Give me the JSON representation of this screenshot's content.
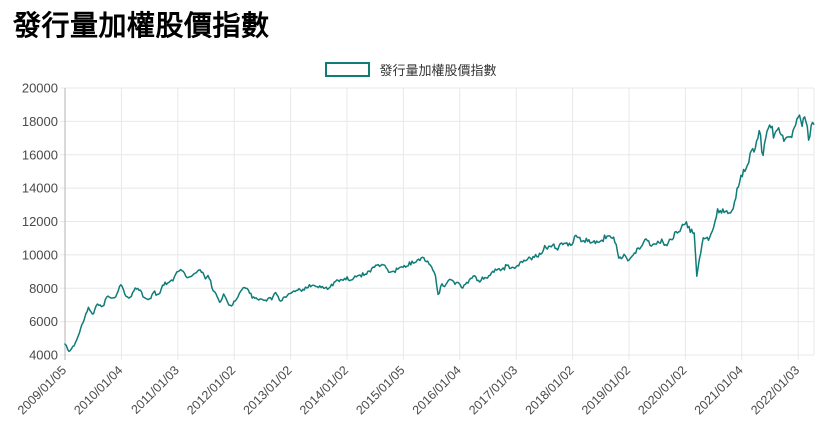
{
  "page": {
    "title": "發行量加權股價指數",
    "background": "#ffffff"
  },
  "legend": {
    "label": "發行量加權股價指數",
    "swatch_border_color": "#0f7c78",
    "swatch_fill": "#ffffff"
  },
  "chart_data": {
    "type": "line",
    "title": "發行量加權股價指數",
    "xlabel": "",
    "ylabel": "",
    "xlim": [
      2009.01,
      2022.29
    ],
    "ylim": [
      4000,
      20000
    ],
    "grid": true,
    "legend_position": "top-center",
    "colors": {
      "line": "#0f7c78",
      "grid": "#e8e8e8",
      "axis": "#b5b5b5",
      "tick_label": "#4a4a4a",
      "title": "#000000"
    },
    "y_ticks": [
      4000,
      6000,
      8000,
      10000,
      12000,
      14000,
      16000,
      18000,
      20000
    ],
    "x_ticks": [
      {
        "label": "2009/01/05",
        "x": 2009.01
      },
      {
        "label": "2010/01/04",
        "x": 2010.01
      },
      {
        "label": "2011/01/03",
        "x": 2011.01
      },
      {
        "label": "2012/01/02",
        "x": 2012.01
      },
      {
        "label": "2013/01/02",
        "x": 2013.01
      },
      {
        "label": "2014/01/02",
        "x": 2014.01
      },
      {
        "label": "2015/01/05",
        "x": 2015.01
      },
      {
        "label": "2016/01/04",
        "x": 2016.01
      },
      {
        "label": "2017/01/03",
        "x": 2017.01
      },
      {
        "label": "2018/01/02",
        "x": 2018.01
      },
      {
        "label": "2019/01/02",
        "x": 2019.01
      },
      {
        "label": "2020/01/02",
        "x": 2020.01
      },
      {
        "label": "2021/01/04",
        "x": 2021.01
      },
      {
        "label": "2022/01/03",
        "x": 2022.01
      }
    ],
    "series": [
      {
        "name": "發行量加權股價指數",
        "points": [
          [
            2009.01,
            4700
          ],
          [
            2009.08,
            4248
          ],
          [
            2009.17,
            4557
          ],
          [
            2009.25,
            5210
          ],
          [
            2009.33,
            5992
          ],
          [
            2009.42,
            6890
          ],
          [
            2009.5,
            6432
          ],
          [
            2009.58,
            7077
          ],
          [
            2009.67,
            6826
          ],
          [
            2009.75,
            7509
          ],
          [
            2009.83,
            7340
          ],
          [
            2009.92,
            7583
          ],
          [
            2010.0,
            8188
          ],
          [
            2010.08,
            7640
          ],
          [
            2010.17,
            7436
          ],
          [
            2010.25,
            7920
          ],
          [
            2010.33,
            8004
          ],
          [
            2010.42,
            7374
          ],
          [
            2010.5,
            7329
          ],
          [
            2010.58,
            7760
          ],
          [
            2010.67,
            7616
          ],
          [
            2010.75,
            8237
          ],
          [
            2010.83,
            8287
          ],
          [
            2010.92,
            8372
          ],
          [
            2011.0,
            8973
          ],
          [
            2011.08,
            9145
          ],
          [
            2011.17,
            8599
          ],
          [
            2011.25,
            8683
          ],
          [
            2011.33,
            9008
          ],
          [
            2011.42,
            9069
          ],
          [
            2011.5,
            8653
          ],
          [
            2011.58,
            8644
          ],
          [
            2011.63,
            7880
          ],
          [
            2011.67,
            7741
          ],
          [
            2011.75,
            7225
          ],
          [
            2011.83,
            7588
          ],
          [
            2011.92,
            6904
          ],
          [
            2012.0,
            7072
          ],
          [
            2012.08,
            7517
          ],
          [
            2012.17,
            8121
          ],
          [
            2012.25,
            7933
          ],
          [
            2012.33,
            7501
          ],
          [
            2012.42,
            7301
          ],
          [
            2012.5,
            7296
          ],
          [
            2012.58,
            7270
          ],
          [
            2012.67,
            7397
          ],
          [
            2012.75,
            7715
          ],
          [
            2012.83,
            7166
          ],
          [
            2012.92,
            7580
          ],
          [
            2013.0,
            7699
          ],
          [
            2013.08,
            7850
          ],
          [
            2013.17,
            7898
          ],
          [
            2013.25,
            7919
          ],
          [
            2013.33,
            8093
          ],
          [
            2013.42,
            8254
          ],
          [
            2013.5,
            8062
          ],
          [
            2013.58,
            8108
          ],
          [
            2013.67,
            8021
          ],
          [
            2013.75,
            8173
          ],
          [
            2013.83,
            8450
          ],
          [
            2013.92,
            8406
          ],
          [
            2014.0,
            8612
          ],
          [
            2014.08,
            8462
          ],
          [
            2014.17,
            8639
          ],
          [
            2014.25,
            8849
          ],
          [
            2014.33,
            8791
          ],
          [
            2014.42,
            9075
          ],
          [
            2014.5,
            9393
          ],
          [
            2014.58,
            9315
          ],
          [
            2014.67,
            9436
          ],
          [
            2014.75,
            8967
          ],
          [
            2014.83,
            8974
          ],
          [
            2014.92,
            9187
          ],
          [
            2015.0,
            9307
          ],
          [
            2015.08,
            9361
          ],
          [
            2015.17,
            9622
          ],
          [
            2015.25,
            9586
          ],
          [
            2015.33,
            9820
          ],
          [
            2015.42,
            9701
          ],
          [
            2015.5,
            9323
          ],
          [
            2015.58,
            8665
          ],
          [
            2015.63,
            7490
          ],
          [
            2015.67,
            8174
          ],
          [
            2015.75,
            8181
          ],
          [
            2015.83,
            8554
          ],
          [
            2015.92,
            8320
          ],
          [
            2016.0,
            8338
          ],
          [
            2016.05,
            7850
          ],
          [
            2016.08,
            8145
          ],
          [
            2016.17,
            8411
          ],
          [
            2016.25,
            8744
          ],
          [
            2016.33,
            8377
          ],
          [
            2016.42,
            8535
          ],
          [
            2016.5,
            8666
          ],
          [
            2016.58,
            8984
          ],
          [
            2016.67,
            9068
          ],
          [
            2016.75,
            9166
          ],
          [
            2016.83,
            9290
          ],
          [
            2016.92,
            9240
          ],
          [
            2017.0,
            9253
          ],
          [
            2017.08,
            9447
          ],
          [
            2017.17,
            9750
          ],
          [
            2017.25,
            9811
          ],
          [
            2017.33,
            9872
          ],
          [
            2017.42,
            10040
          ],
          [
            2017.5,
            10395
          ],
          [
            2017.58,
            10427
          ],
          [
            2017.67,
            10585
          ],
          [
            2017.75,
            10384
          ],
          [
            2017.83,
            10793
          ],
          [
            2017.92,
            10560
          ],
          [
            2018.0,
            10642
          ],
          [
            2018.06,
            11200
          ],
          [
            2018.08,
            11104
          ],
          [
            2018.17,
            10815
          ],
          [
            2018.25,
            10919
          ],
          [
            2018.33,
            10657
          ],
          [
            2018.42,
            10874
          ],
          [
            2018.5,
            10836
          ],
          [
            2018.58,
            11057
          ],
          [
            2018.67,
            11063
          ],
          [
            2018.75,
            11006
          ],
          [
            2018.83,
            9802
          ],
          [
            2018.92,
            9888
          ],
          [
            2019.0,
            9727
          ],
          [
            2019.08,
            9932
          ],
          [
            2019.17,
            10389
          ],
          [
            2019.25,
            10641
          ],
          [
            2019.33,
            10967
          ],
          [
            2019.42,
            10498
          ],
          [
            2019.5,
            10730
          ],
          [
            2019.58,
            10823
          ],
          [
            2019.67,
            10618
          ],
          [
            2019.75,
            10829
          ],
          [
            2019.83,
            11358
          ],
          [
            2019.92,
            11489
          ],
          [
            2020.0,
            11997
          ],
          [
            2020.08,
            11495
          ],
          [
            2020.17,
            11292
          ],
          [
            2020.21,
            8681
          ],
          [
            2020.25,
            9708
          ],
          [
            2020.33,
            10992
          ],
          [
            2020.42,
            10942
          ],
          [
            2020.5,
            11621
          ],
          [
            2020.58,
            12664
          ],
          [
            2020.67,
            12591
          ],
          [
            2020.75,
            12515
          ],
          [
            2020.83,
            12546
          ],
          [
            2020.92,
            13723
          ],
          [
            2021.0,
            14732
          ],
          [
            2021.08,
            15138
          ],
          [
            2021.17,
            15953
          ],
          [
            2021.25,
            16431
          ],
          [
            2021.33,
            17566
          ],
          [
            2021.38,
            15700
          ],
          [
            2021.42,
            17068
          ],
          [
            2021.5,
            17755
          ],
          [
            2021.58,
            17247
          ],
          [
            2021.67,
            17490
          ],
          [
            2021.75,
            16934
          ],
          [
            2021.83,
            16987
          ],
          [
            2021.92,
            17427
          ],
          [
            2022.0,
            18218
          ],
          [
            2022.02,
            18560
          ],
          [
            2022.08,
            17674
          ],
          [
            2022.12,
            18330
          ],
          [
            2022.17,
            17600
          ],
          [
            2022.19,
            16700
          ],
          [
            2022.25,
            17963
          ],
          [
            2022.29,
            17800
          ]
        ]
      }
    ]
  }
}
